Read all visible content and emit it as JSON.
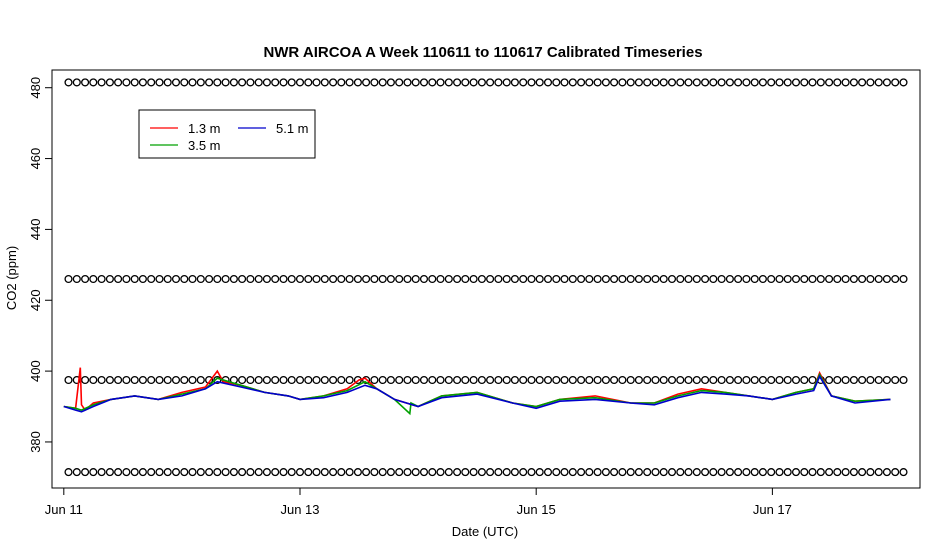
{
  "chart_data": {
    "type": "line",
    "title": "NWR AIRCOA A  Week 110611 to 110617  Calibrated Timeseries",
    "xlabel": "Date (UTC)",
    "ylabel": "CO2 (ppm)",
    "xlim": [
      -0.1,
      7.25
    ],
    "ylim": [
      367,
      485
    ],
    "x_ticks": [
      {
        "value": 0,
        "label": "Jun 11"
      },
      {
        "value": 2,
        "label": "Jun 13"
      },
      {
        "value": 4,
        "label": "Jun 15"
      },
      {
        "value": 6,
        "label": "Jun 17"
      }
    ],
    "y_ticks": [
      380,
      400,
      420,
      440,
      460,
      480
    ],
    "legend": {
      "placement": "top-left",
      "entries": [
        {
          "label": "1.3 m",
          "color": "#ff0000"
        },
        {
          "label": "3.5 m",
          "color": "#00a000"
        },
        {
          "label": "5.1 m",
          "color": "#0000cc"
        }
      ]
    },
    "series": [
      {
        "name": "1.3 m",
        "color": "#ff0000",
        "x": [
          0.0,
          0.1,
          0.14,
          0.15,
          0.18,
          0.25,
          0.4,
          0.6,
          0.8,
          1.0,
          1.2,
          1.3,
          1.35,
          1.5,
          1.7,
          1.9,
          2.0,
          2.2,
          2.4,
          2.5,
          2.55,
          2.65,
          2.8,
          3.0,
          3.2,
          3.5,
          3.8,
          4.0,
          4.2,
          4.5,
          4.8,
          5.0,
          5.2,
          5.4,
          5.6,
          5.8,
          6.0,
          6.2,
          6.35,
          6.4,
          6.5,
          6.7,
          7.0
        ],
        "y": [
          390,
          389.5,
          401,
          390.5,
          389,
          391,
          392,
          393,
          392,
          394,
          395.5,
          400,
          397,
          396,
          394,
          393,
          392,
          393,
          395,
          397.5,
          398,
          395,
          392,
          390,
          393,
          394,
          391,
          390,
          392,
          393,
          391,
          391,
          393.5,
          395,
          394,
          393,
          392,
          394,
          395,
          399.5,
          393,
          391.5,
          392
        ]
      },
      {
        "name": "3.5 m",
        "color": "#00a000",
        "x": [
          0.0,
          0.1,
          0.15,
          0.25,
          0.4,
          0.6,
          0.8,
          1.0,
          1.2,
          1.3,
          1.5,
          1.7,
          1.9,
          2.0,
          2.2,
          2.4,
          2.55,
          2.65,
          2.8,
          2.93,
          2.94,
          3.0,
          3.2,
          3.5,
          3.8,
          4.0,
          4.2,
          4.5,
          4.8,
          5.0,
          5.2,
          5.4,
          5.6,
          5.8,
          6.0,
          6.2,
          6.35,
          6.4,
          6.5,
          6.7,
          7.0
        ],
        "y": [
          390,
          389.5,
          389,
          390.5,
          392,
          393,
          392,
          393.5,
          395,
          398,
          396,
          394,
          393,
          392,
          393,
          394.5,
          397,
          395,
          392,
          388,
          391,
          390,
          393,
          394,
          391,
          390,
          392,
          392.5,
          391,
          391,
          393,
          394.5,
          394,
          393,
          392,
          394,
          395,
          399,
          393,
          391.5,
          392
        ]
      },
      {
        "name": "5.1 m",
        "color": "#0000cc",
        "x": [
          0.0,
          0.1,
          0.15,
          0.25,
          0.4,
          0.6,
          0.8,
          1.0,
          1.2,
          1.3,
          1.5,
          1.7,
          1.9,
          2.0,
          2.2,
          2.4,
          2.55,
          2.65,
          2.8,
          3.0,
          3.2,
          3.5,
          3.8,
          4.0,
          4.2,
          4.5,
          4.8,
          5.0,
          5.2,
          5.4,
          5.6,
          5.8,
          6.0,
          6.2,
          6.35,
          6.4,
          6.5,
          6.7,
          7.0
        ],
        "y": [
          390,
          389,
          388.5,
          390,
          392,
          393,
          392,
          393,
          395,
          397,
          395.5,
          394,
          393,
          392,
          392.5,
          394,
          396,
          395,
          392,
          390,
          392.5,
          393.5,
          391,
          389.5,
          391.5,
          392,
          391,
          390.5,
          392.5,
          394,
          393.5,
          393,
          392,
          393.5,
          394.5,
          398.5,
          393,
          391,
          392
        ]
      },
      {
        "name": "",
        "color": "#000000",
        "marker": "circle",
        "x_range": [
          0.04,
          7.16
        ],
        "step": 0.07,
        "y_levels": [
          481.5,
          426,
          397.5,
          371.5
        ]
      }
    ]
  }
}
